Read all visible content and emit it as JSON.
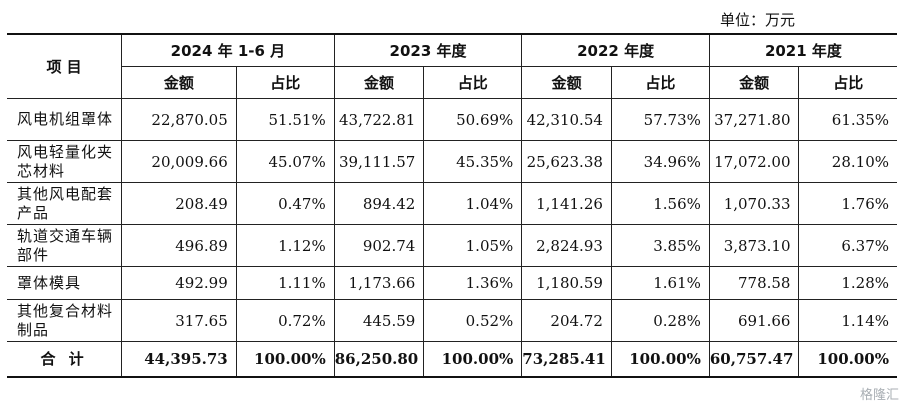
{
  "unit_label": "单位：万元",
  "watermark": "格隆汇",
  "header": {
    "item_label": "项 目",
    "periods": [
      "2024 年 1-6 月",
      "2023 年度",
      "2022 年度",
      "2021 年度"
    ],
    "amount_label": "金额",
    "ratio_label": "占比"
  },
  "rows": [
    {
      "name": "风电机组罩体",
      "values": [
        "22,870.05",
        "51.51%",
        "43,722.81",
        "50.69%",
        "42,310.54",
        "57.73%",
        "37,271.80",
        "61.35%"
      ]
    },
    {
      "name": "风电轻量化夹芯材料",
      "values": [
        "20,009.66",
        "45.07%",
        "39,111.57",
        "45.35%",
        "25,623.38",
        "34.96%",
        "17,072.00",
        "28.10%"
      ]
    },
    {
      "name": "其他风电配套产品",
      "values": [
        "208.49",
        "0.47%",
        "894.42",
        "1.04%",
        "1,141.26",
        "1.56%",
        "1,070.33",
        "1.76%"
      ]
    },
    {
      "name": "轨道交通车辆部件",
      "values": [
        "496.89",
        "1.12%",
        "902.74",
        "1.05%",
        "2,824.93",
        "3.85%",
        "3,873.10",
        "6.37%"
      ]
    },
    {
      "name": "罩体模具",
      "values": [
        "492.99",
        "1.11%",
        "1,173.66",
        "1.36%",
        "1,180.59",
        "1.61%",
        "778.58",
        "1.28%"
      ]
    },
    {
      "name": "其他复合材料制品",
      "values": [
        "317.65",
        "0.72%",
        "445.59",
        "0.52%",
        "204.72",
        "0.28%",
        "691.66",
        "1.14%"
      ]
    }
  ],
  "total": {
    "name": "合 计",
    "values": [
      "44,395.73",
      "100.00%",
      "86,250.80",
      "100.00%",
      "73,285.41",
      "100.00%",
      "60,757.47",
      "100.00%"
    ]
  }
}
